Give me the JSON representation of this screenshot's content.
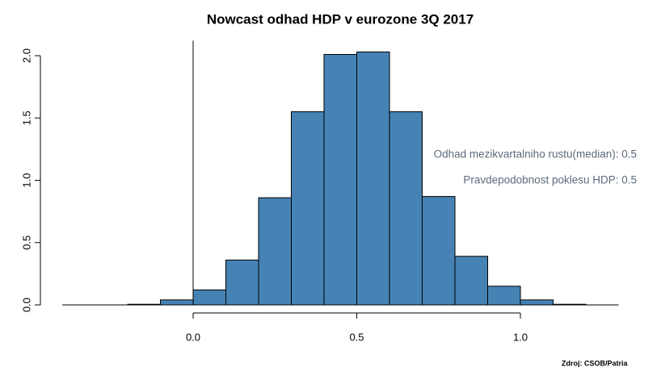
{
  "chart_data": {
    "type": "histogram",
    "title": "Nowcast odhad HDP v eurozone 3Q 2017",
    "bins": [
      -0.2,
      -0.1,
      0,
      0.1,
      0.2,
      0.3,
      0.4,
      0.5,
      0.6,
      0.7,
      0.8,
      0.9,
      1.0,
      1.1,
      1.2
    ],
    "values": [
      0.005,
      0.04,
      0.12,
      0.36,
      0.86,
      1.55,
      2.01,
      2.03,
      1.55,
      0.87,
      0.39,
      0.15,
      0.04,
      0.005
    ],
    "color": "#4682b4",
    "xlim": [
      -0.4,
      1.3
    ],
    "ylim": [
      0,
      2.12
    ],
    "xticks": [
      {
        "value": 0,
        "label": "0.0"
      },
      {
        "value": 0.5,
        "label": "0.5"
      },
      {
        "value": 1,
        "label": "1.0"
      }
    ],
    "yticks": [
      {
        "value": 0,
        "label": "0.0"
      },
      {
        "value": 0.5,
        "label": "0.5"
      },
      {
        "value": 1,
        "label": "1.0"
      },
      {
        "value": 1.5,
        "label": "1.5"
      },
      {
        "value": 2,
        "label": "2.0"
      }
    ],
    "annotations": [
      "Odhad mezikvartalniho rustu(median): 0.5",
      "Pravdepodobnost poklesu HDP: 0.5"
    ],
    "source": "Zdroj: CSOB/Patria"
  }
}
